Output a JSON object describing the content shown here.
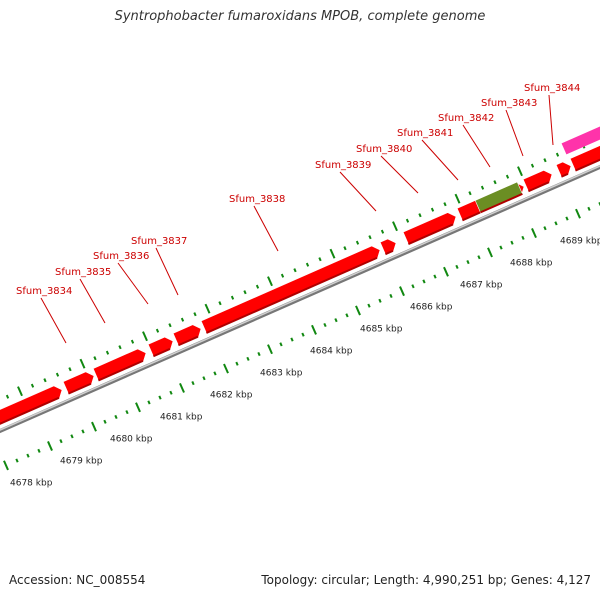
{
  "title": "Syntrophobacter fumaroxidans MPOB, complete genome",
  "accession": "Accession: NC_008554",
  "summary": "Topology: circular; Length: 4,990,251 bp; Genes: 4,127",
  "colors": {
    "gene": "#ff0000",
    "gene_dark": "#b00000",
    "rna": "#6b8e23",
    "other": "#ff33aa",
    "backbone": "#999999",
    "ticks": "#118811",
    "label": "#cc0000"
  },
  "gene_labels": [
    "Sfum_3834",
    "Sfum_3835",
    "Sfum_3836",
    "Sfum_3837",
    "Sfum_3838",
    "Sfum_3839",
    "Sfum_3840",
    "Sfum_3841",
    "Sfum_3842",
    "Sfum_3843",
    "Sfum_3844"
  ],
  "scale_labels": [
    "4678 kbp",
    "4679 kbp",
    "4680 kbp",
    "4681 kbp",
    "4682 kbp",
    "4683 kbp",
    "4684 kbp",
    "4685 kbp",
    "4686 kbp",
    "4687 kbp",
    "4688 kbp",
    "4689 kbp"
  ]
}
